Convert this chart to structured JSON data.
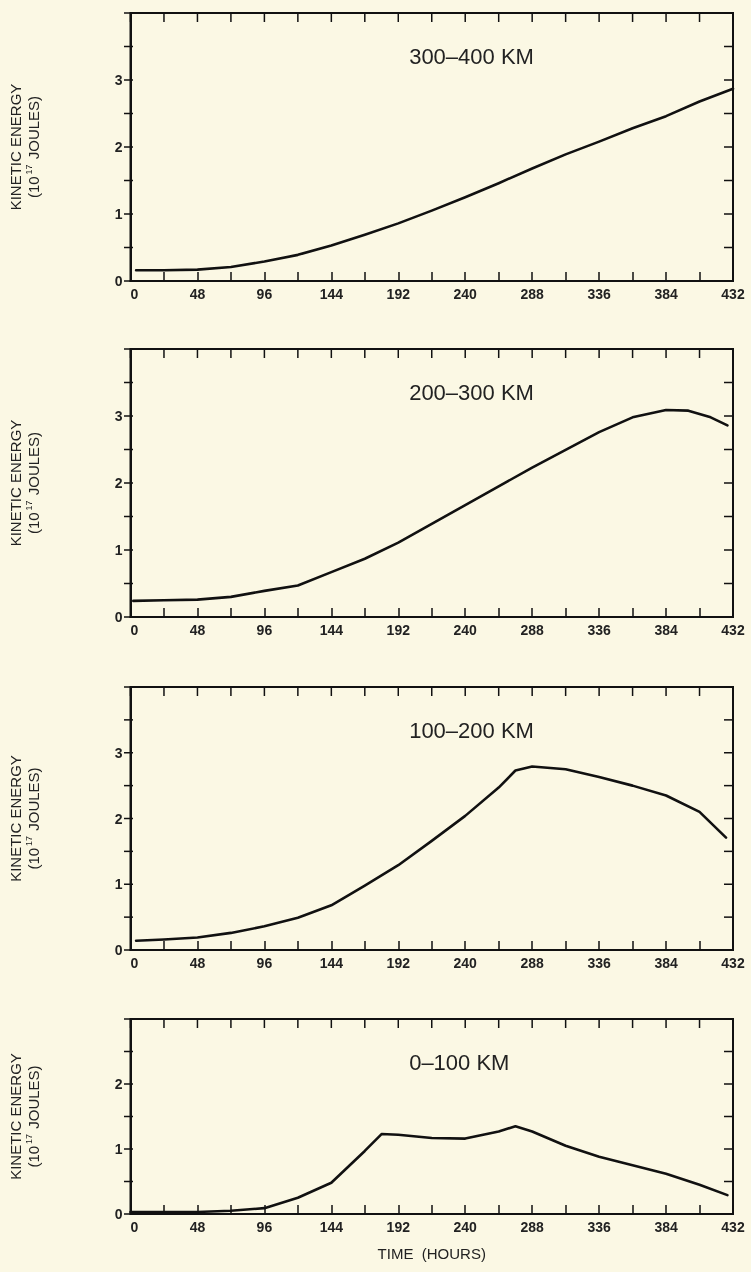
{
  "chart_data": [
    {
      "type": "line",
      "title": "300–400 KM",
      "ylabel": "KINETIC ENERGY\n(10$^{17}$ JOULES)",
      "xlim": [
        0,
        432
      ],
      "ylim": [
        0,
        4
      ],
      "xticks": [
        0,
        {
          "value": 24,
          "label": null
        },
        48,
        {
          "value": 72,
          "label": null
        },
        96,
        {
          "value": 120,
          "label": null
        },
        144,
        {
          "value": 168,
          "label": null
        },
        192,
        {
          "value": 216,
          "label": null
        },
        240,
        {
          "value": 264,
          "label": null
        },
        288,
        {
          "value": 312,
          "label": null
        },
        336,
        {
          "value": 360,
          "label": null
        },
        384,
        {
          "value": 408,
          "label": null
        },
        432
      ],
      "yticks": [
        0,
        {
          "value": 0.5,
          "label": null
        },
        1,
        {
          "value": 1.5,
          "label": null
        },
        2,
        {
          "value": 2.5,
          "label": null
        },
        3,
        {
          "value": 3.5,
          "label": null
        },
        {
          "value": 4,
          "label": null
        }
      ],
      "x": [
        4,
        24,
        48,
        72,
        96,
        120,
        144,
        168,
        192,
        216,
        240,
        264,
        288,
        312,
        336,
        360,
        384,
        408,
        432
      ],
      "series": [
        {
          "color": "#111111",
          "values": [
            0.16,
            0.16,
            0.17,
            0.21,
            0.29,
            0.39,
            0.53,
            0.69,
            0.86,
            1.05,
            1.25,
            1.46,
            1.68,
            1.89,
            2.08,
            2.28,
            2.46,
            2.68,
            2.87
          ]
        }
      ]
    },
    {
      "type": "line",
      "title": "200–300 KM",
      "ylabel": "KINETIC ENERGY\n(10$^{17}$ JOULES)",
      "xlim": [
        0,
        432
      ],
      "ylim": [
        0,
        4
      ],
      "xticks": [
        0,
        {
          "value": 24,
          "label": null
        },
        48,
        {
          "value": 72,
          "label": null
        },
        96,
        {
          "value": 120,
          "label": null
        },
        144,
        {
          "value": 168,
          "label": null
        },
        192,
        {
          "value": 216,
          "label": null
        },
        240,
        {
          "value": 264,
          "label": null
        },
        288,
        {
          "value": 312,
          "label": null
        },
        336,
        {
          "value": 360,
          "label": null
        },
        384,
        {
          "value": 408,
          "label": null
        },
        432
      ],
      "yticks": [
        0,
        {
          "value": 0.5,
          "label": null
        },
        1,
        {
          "value": 1.5,
          "label": null
        },
        2,
        {
          "value": 2.5,
          "label": null
        },
        3,
        {
          "value": 3.5,
          "label": null
        },
        {
          "value": 4,
          "label": null
        }
      ],
      "x": [
        2,
        24,
        48,
        72,
        96,
        120,
        144,
        168,
        192,
        240,
        288,
        336,
        360,
        384,
        400,
        416,
        428
      ],
      "series": [
        {
          "color": "#111111",
          "values": [
            0.24,
            0.25,
            0.26,
            0.3,
            0.39,
            0.47,
            0.67,
            0.87,
            1.11,
            1.67,
            2.23,
            2.76,
            2.98,
            3.09,
            3.08,
            2.98,
            2.86
          ]
        }
      ]
    },
    {
      "type": "line",
      "title": "100–200 KM",
      "ylabel": "KINETIC ENERGY\n(10$^{17}$ JOULES)",
      "xlim": [
        0,
        432
      ],
      "ylim": [
        0,
        4
      ],
      "xticks": [
        0,
        {
          "value": 24,
          "label": null
        },
        48,
        {
          "value": 72,
          "label": null
        },
        96,
        {
          "value": 120,
          "label": null
        },
        144,
        {
          "value": 168,
          "label": null
        },
        192,
        {
          "value": 216,
          "label": null
        },
        240,
        {
          "value": 264,
          "label": null
        },
        288,
        {
          "value": 312,
          "label": null
        },
        336,
        {
          "value": 360,
          "label": null
        },
        384,
        {
          "value": 408,
          "label": null
        },
        432
      ],
      "yticks": [
        0,
        {
          "value": 0.5,
          "label": null
        },
        1,
        {
          "value": 1.5,
          "label": null
        },
        2,
        {
          "value": 2.5,
          "label": null
        },
        3,
        {
          "value": 3.5,
          "label": null
        },
        {
          "value": 4,
          "label": null
        }
      ],
      "x": [
        4,
        24,
        48,
        72,
        96,
        120,
        144,
        168,
        192,
        216,
        240,
        264,
        276,
        288,
        312,
        336,
        360,
        384,
        408,
        427
      ],
      "series": [
        {
          "color": "#111111",
          "values": [
            0.14,
            0.16,
            0.19,
            0.26,
            0.36,
            0.49,
            0.68,
            0.98,
            1.29,
            1.66,
            2.04,
            2.47,
            2.73,
            2.79,
            2.75,
            2.63,
            2.5,
            2.35,
            2.1,
            1.71
          ]
        }
      ]
    },
    {
      "type": "line",
      "title": "0–100 KM",
      "ylabel": "KINETIC ENERGY\n(10$^{17}$ JOULES)",
      "xlabel": "TIME  (HOURS)",
      "xlim": [
        0,
        432
      ],
      "ylim": [
        0,
        3
      ],
      "xticks": [
        0,
        {
          "value": 24,
          "label": null
        },
        48,
        {
          "value": 72,
          "label": null
        },
        96,
        {
          "value": 120,
          "label": null
        },
        144,
        {
          "value": 168,
          "label": null
        },
        192,
        {
          "value": 216,
          "label": null
        },
        240,
        {
          "value": 264,
          "label": null
        },
        288,
        {
          "value": 312,
          "label": null
        },
        336,
        {
          "value": 360,
          "label": null
        },
        384,
        {
          "value": 408,
          "label": null
        },
        432
      ],
      "yticks": [
        0,
        {
          "value": 0.5,
          "label": null
        },
        1,
        {
          "value": 1.5,
          "label": null
        },
        2,
        {
          "value": 2.5,
          "label": null
        },
        {
          "value": 3,
          "label": null
        }
      ],
      "x": [
        0,
        24,
        48,
        72,
        96,
        120,
        144,
        168,
        180,
        192,
        216,
        240,
        264,
        276,
        288,
        312,
        336,
        360,
        384,
        408,
        428
      ],
      "series": [
        {
          "color": "#111111",
          "values": [
            0.03,
            0.03,
            0.03,
            0.05,
            0.09,
            0.25,
            0.48,
            0.97,
            1.23,
            1.22,
            1.17,
            1.16,
            1.27,
            1.35,
            1.27,
            1.05,
            0.88,
            0.75,
            0.62,
            0.45,
            0.29
          ]
        }
      ]
    }
  ]
}
